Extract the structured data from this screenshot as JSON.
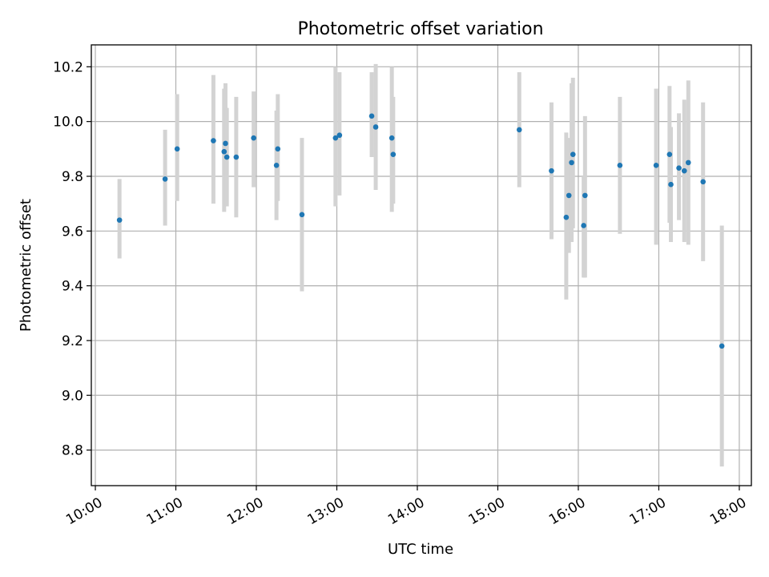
{
  "chart_data": {
    "type": "scatter",
    "title": "Photometric offset variation",
    "xlabel": "UTC time",
    "ylabel": "Photometric offset",
    "x_ticks": [
      "10:00",
      "11:00",
      "12:00",
      "13:00",
      "14:00",
      "15:00",
      "16:00",
      "17:00",
      "18:00"
    ],
    "y_ticks": [
      "8.8",
      "9.0",
      "9.2",
      "9.4",
      "9.6",
      "9.8",
      "10.0",
      "10.2"
    ],
    "xlim": [
      "09:57",
      "18:09"
    ],
    "ylim": [
      8.67,
      10.28
    ],
    "grid": true,
    "errorbar_color": "#d3d3d3",
    "point_color": "#1f77b4",
    "points": [
      {
        "x": "10:18",
        "y": 9.64,
        "lo": 9.5,
        "hi": 9.79
      },
      {
        "x": "10:52",
        "y": 9.79,
        "lo": 9.62,
        "hi": 9.97
      },
      {
        "x": "11:01",
        "y": 9.9,
        "lo": 9.71,
        "hi": 10.1
      },
      {
        "x": "11:28",
        "y": 9.93,
        "lo": 9.7,
        "hi": 10.17
      },
      {
        "x": "11:36",
        "y": 9.89,
        "lo": 9.67,
        "hi": 10.12
      },
      {
        "x": "11:37",
        "y": 9.92,
        "lo": 9.7,
        "hi": 10.14
      },
      {
        "x": "11:38",
        "y": 9.87,
        "lo": 9.69,
        "hi": 10.05
      },
      {
        "x": "11:45",
        "y": 9.87,
        "lo": 9.65,
        "hi": 10.09
      },
      {
        "x": "11:58",
        "y": 9.94,
        "lo": 9.76,
        "hi": 10.11
      },
      {
        "x": "12:15",
        "y": 9.84,
        "lo": 9.64,
        "hi": 10.04
      },
      {
        "x": "12:16",
        "y": 9.9,
        "lo": 9.71,
        "hi": 10.1
      },
      {
        "x": "12:34",
        "y": 9.66,
        "lo": 9.38,
        "hi": 9.94
      },
      {
        "x": "12:59",
        "y": 9.94,
        "lo": 9.69,
        "hi": 10.2
      },
      {
        "x": "13:02",
        "y": 9.95,
        "lo": 9.73,
        "hi": 10.18
      },
      {
        "x": "13:26",
        "y": 10.02,
        "lo": 9.87,
        "hi": 10.18
      },
      {
        "x": "13:29",
        "y": 9.98,
        "lo": 9.75,
        "hi": 10.21
      },
      {
        "x": "13:41",
        "y": 9.94,
        "lo": 9.67,
        "hi": 10.2
      },
      {
        "x": "13:42",
        "y": 9.88,
        "lo": 9.7,
        "hi": 10.09
      },
      {
        "x": "15:16",
        "y": 9.97,
        "lo": 9.76,
        "hi": 10.18
      },
      {
        "x": "15:40",
        "y": 9.82,
        "lo": 9.57,
        "hi": 10.07
      },
      {
        "x": "15:51",
        "y": 9.65,
        "lo": 9.35,
        "hi": 9.96
      },
      {
        "x": "15:53",
        "y": 9.73,
        "lo": 9.52,
        "hi": 9.94
      },
      {
        "x": "15:55",
        "y": 9.85,
        "lo": 9.56,
        "hi": 10.14
      },
      {
        "x": "15:56",
        "y": 9.88,
        "lo": 9.61,
        "hi": 10.16
      },
      {
        "x": "16:04",
        "y": 9.62,
        "lo": 9.43,
        "hi": 9.8
      },
      {
        "x": "16:05",
        "y": 9.73,
        "lo": 9.43,
        "hi": 10.02
      },
      {
        "x": "16:31",
        "y": 9.84,
        "lo": 9.59,
        "hi": 10.09
      },
      {
        "x": "16:58",
        "y": 9.84,
        "lo": 9.55,
        "hi": 10.12
      },
      {
        "x": "17:08",
        "y": 9.88,
        "lo": 9.63,
        "hi": 10.13
      },
      {
        "x": "17:09",
        "y": 9.77,
        "lo": 9.56,
        "hi": 9.98
      },
      {
        "x": "17:15",
        "y": 9.83,
        "lo": 9.64,
        "hi": 10.03
      },
      {
        "x": "17:19",
        "y": 9.82,
        "lo": 9.56,
        "hi": 10.08
      },
      {
        "x": "17:22",
        "y": 9.85,
        "lo": 9.55,
        "hi": 10.15
      },
      {
        "x": "17:33",
        "y": 9.78,
        "lo": 9.49,
        "hi": 10.07
      },
      {
        "x": "17:47",
        "y": 9.18,
        "lo": 8.74,
        "hi": 9.62
      }
    ]
  }
}
